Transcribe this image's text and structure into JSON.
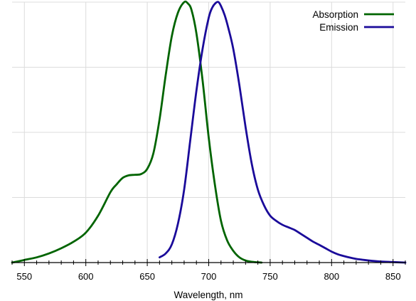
{
  "chart_data": {
    "type": "line",
    "title": "",
    "xlabel": "Wavelength, nm",
    "ylabel": "",
    "xlim": [
      540,
      860
    ],
    "ylim": [
      0,
      1
    ],
    "xticks": [
      550,
      600,
      650,
      700,
      750,
      800,
      850
    ],
    "minor_xtick_step": 10,
    "y_grid": [
      0.25,
      0.5,
      0.75,
      1.0
    ],
    "grid": true,
    "legend": "top-right",
    "series": [
      {
        "name": "Absorption",
        "color": "#006400",
        "x": [
          540,
          550,
          560,
          570,
          580,
          590,
          600,
          610,
          620,
          625,
          630,
          635,
          640,
          645,
          650,
          655,
          660,
          665,
          670,
          675,
          680,
          683,
          686,
          690,
          695,
          700,
          705,
          710,
          715,
          720,
          725,
          730,
          735,
          740,
          743
        ],
        "y": [
          0.0,
          0.01,
          0.02,
          0.035,
          0.055,
          0.08,
          0.115,
          0.18,
          0.27,
          0.3,
          0.325,
          0.335,
          0.337,
          0.34,
          0.36,
          0.42,
          0.55,
          0.72,
          0.87,
          0.96,
          1.0,
          0.995,
          0.97,
          0.88,
          0.7,
          0.48,
          0.3,
          0.16,
          0.085,
          0.045,
          0.02,
          0.008,
          0.003,
          0.001,
          0.0
        ]
      },
      {
        "name": "Emission",
        "color": "#1a0a9a",
        "x": [
          660,
          665,
          670,
          675,
          680,
          685,
          690,
          695,
          700,
          703,
          706,
          708,
          710,
          713,
          716,
          720,
          725,
          730,
          735,
          740,
          745,
          750,
          755,
          760,
          765,
          770,
          775,
          780,
          785,
          790,
          795,
          800,
          805,
          810,
          815,
          820,
          825,
          830,
          840,
          850,
          860
        ],
        "y": [
          0.02,
          0.035,
          0.07,
          0.15,
          0.28,
          0.47,
          0.66,
          0.82,
          0.94,
          0.98,
          0.998,
          1.0,
          0.985,
          0.95,
          0.9,
          0.82,
          0.68,
          0.52,
          0.38,
          0.28,
          0.22,
          0.18,
          0.16,
          0.145,
          0.135,
          0.125,
          0.11,
          0.095,
          0.08,
          0.068,
          0.055,
          0.042,
          0.032,
          0.025,
          0.019,
          0.014,
          0.011,
          0.008,
          0.004,
          0.002,
          0.0
        ]
      }
    ]
  }
}
